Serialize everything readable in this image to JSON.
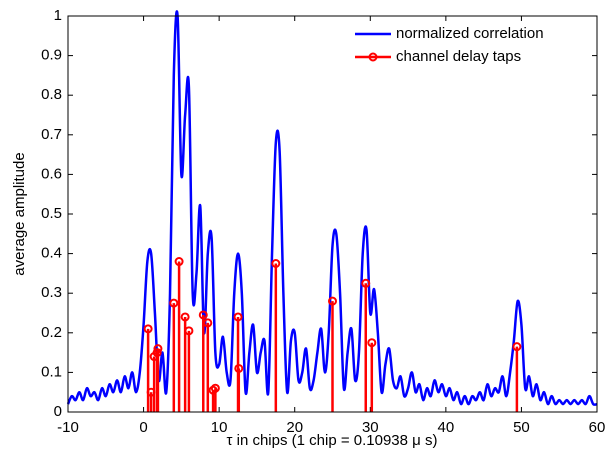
{
  "chart_data": {
    "type": "line",
    "xlabel": "τ in chips (1 chip = 0.10938 μ s)",
    "ylabel": "average amplitude",
    "xlim": [
      -10,
      60
    ],
    "xticks": [
      -10,
      0,
      10,
      20,
      30,
      40,
      50,
      60
    ],
    "ylim": [
      0,
      1
    ],
    "yticks": [
      0,
      0.1,
      0.2,
      0.3,
      0.4,
      0.5,
      0.6,
      0.7,
      0.8,
      0.9,
      1
    ],
    "legend": "upper right",
    "series": [
      {
        "name": "normalized correlation",
        "type": "line",
        "color": "#0000ff",
        "x": [
          -10,
          -9.5,
          -9,
          -8.5,
          -8,
          -7.5,
          -7,
          -6.5,
          -6,
          -5.5,
          -5,
          -4.5,
          -4,
          -3.5,
          -3,
          -2.5,
          -2,
          -1.5,
          -1,
          -0.5,
          0,
          0.5,
          1,
          1.5,
          2,
          2.5,
          3,
          3.5,
          4,
          4.5,
          5,
          5.5,
          6,
          6.5,
          7,
          7.5,
          8,
          8.5,
          9,
          9.5,
          10,
          10.5,
          11,
          11.5,
          12,
          12.5,
          13,
          13.5,
          14,
          14.5,
          15,
          15.5,
          16,
          16.5,
          17,
          17.5,
          18,
          18.5,
          19,
          19.5,
          20,
          20.5,
          21,
          21.5,
          22,
          22.5,
          23,
          23.5,
          24,
          24.5,
          25,
          25.5,
          26,
          26.5,
          27,
          27.5,
          28,
          28.5,
          29,
          29.5,
          30,
          30.5,
          31,
          31.5,
          32,
          32.5,
          33,
          33.5,
          34,
          34.5,
          35,
          35.5,
          36,
          36.5,
          37,
          37.5,
          38,
          38.5,
          39,
          39.5,
          40,
          40.5,
          41,
          41.5,
          42,
          42.5,
          43,
          43.5,
          44,
          44.5,
          45,
          45.5,
          46,
          46.5,
          47,
          47.5,
          48,
          48.5,
          49,
          49.5,
          50,
          50.5,
          51,
          51.5,
          52,
          52.5,
          53,
          53.5,
          54,
          54.5,
          55,
          55.5,
          56,
          56.5,
          57,
          57.5,
          58,
          58.5,
          59,
          59.5,
          60
        ],
        "values": [
          0.02,
          0.04,
          0.03,
          0.05,
          0.03,
          0.06,
          0.04,
          0.05,
          0.03,
          0.06,
          0.04,
          0.07,
          0.05,
          0.08,
          0.05,
          0.09,
          0.06,
          0.1,
          0.05,
          0.1,
          0.22,
          0.38,
          0.4,
          0.25,
          0.08,
          0.15,
          0.05,
          0.3,
          0.85,
          1.0,
          0.6,
          0.75,
          0.82,
          0.3,
          0.35,
          0.52,
          0.2,
          0.4,
          0.44,
          0.15,
          0.12,
          0.19,
          0.1,
          0.08,
          0.3,
          0.4,
          0.3,
          0.05,
          0.15,
          0.22,
          0.1,
          0.15,
          0.18,
          0.05,
          0.4,
          0.68,
          0.66,
          0.3,
          0.05,
          0.18,
          0.2,
          0.08,
          0.1,
          0.16,
          0.06,
          0.08,
          0.15,
          0.21,
          0.1,
          0.2,
          0.42,
          0.45,
          0.3,
          0.06,
          0.15,
          0.21,
          0.08,
          0.15,
          0.4,
          0.46,
          0.25,
          0.31,
          0.2,
          0.05,
          0.12,
          0.16,
          0.08,
          0.06,
          0.09,
          0.04,
          0.06,
          0.1,
          0.05,
          0.07,
          0.03,
          0.06,
          0.04,
          0.08,
          0.05,
          0.07,
          0.04,
          0.06,
          0.03,
          0.05,
          0.02,
          0.04,
          0.02,
          0.04,
          0.03,
          0.05,
          0.03,
          0.07,
          0.04,
          0.06,
          0.05,
          0.09,
          0.04,
          0.1,
          0.18,
          0.28,
          0.22,
          0.06,
          0.09,
          0.04,
          0.07,
          0.03,
          0.05,
          0.02,
          0.04,
          0.02,
          0.03,
          0.02,
          0.03,
          0.02,
          0.03,
          0.02,
          0.03,
          0.02,
          0.04,
          0.02,
          0.02
        ]
      },
      {
        "name": "channel delay taps",
        "type": "stem",
        "color": "#ff0000",
        "x": [
          0.6,
          1.0,
          1.4,
          1.8,
          1.9,
          4.0,
          4.7,
          5.5,
          6.0,
          7.9,
          8.5,
          9.2,
          9.5,
          12.5,
          12.6,
          17.5,
          25.0,
          29.4,
          30.2,
          49.4
        ],
        "values": [
          0.21,
          0.05,
          0.14,
          0.15,
          0.16,
          0.275,
          0.38,
          0.24,
          0.205,
          0.245,
          0.225,
          0.055,
          0.06,
          0.24,
          0.11,
          0.375,
          0.28,
          0.325,
          0.175,
          0.165
        ]
      }
    ]
  }
}
